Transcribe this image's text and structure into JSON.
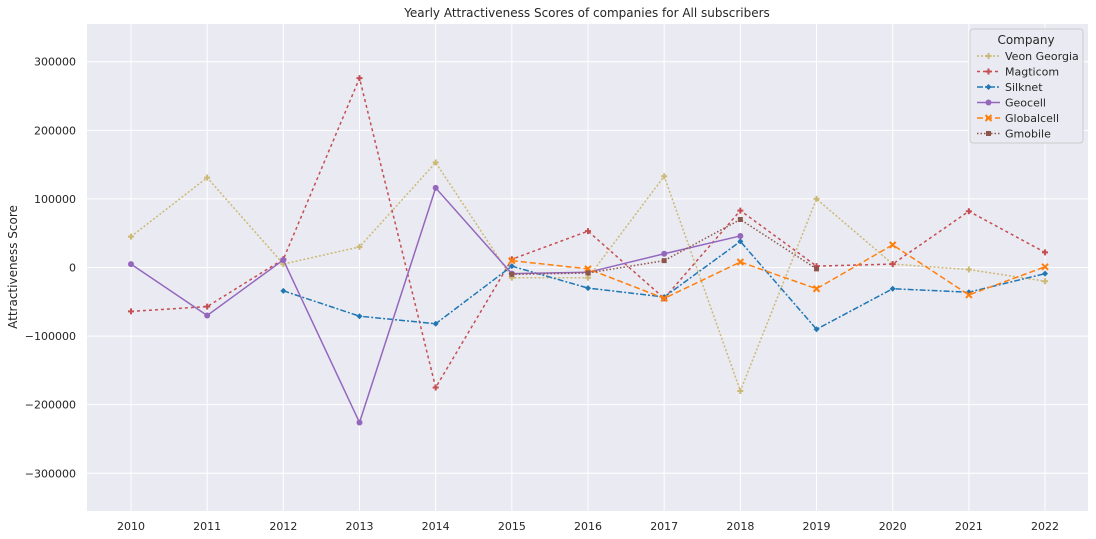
{
  "chart_data": {
    "type": "line",
    "title": "Yearly Attractiveness Scores of companies for All subscribers",
    "xlabel": "",
    "ylabel": "Attractiveness Score",
    "x": [
      "2010",
      "2011",
      "2012",
      "2013",
      "2014",
      "2015",
      "2016",
      "2017",
      "2018",
      "2019",
      "2020",
      "2021",
      "2022"
    ],
    "ylim": [
      -355000,
      355000
    ],
    "yticks": [
      -300000,
      -200000,
      -100000,
      0,
      100000,
      200000,
      300000
    ],
    "ytick_labels": [
      "−300000",
      "−200000",
      "−100000",
      "0",
      "100000",
      "200000",
      "300000"
    ],
    "grid": true,
    "legend": {
      "title": "Company",
      "position": "top-right"
    },
    "series": [
      {
        "name": "Veon Georgia",
        "color": "#ccb974",
        "dash": "2,2",
        "marker": "plus",
        "values": [
          45000,
          131000,
          5000,
          30000,
          153000,
          -15000,
          -15000,
          133000,
          -180000,
          100000,
          5000,
          -3000,
          -20000
        ]
      },
      {
        "name": "Magticom",
        "color": "#c44e52",
        "dash": "3,3",
        "marker": "plus",
        "values": [
          -64000,
          -57000,
          12000,
          276000,
          -175000,
          12000,
          53000,
          -45000,
          83000,
          2000,
          5000,
          82000,
          22000
        ]
      },
      {
        "name": "Silknet",
        "color": "#1f77b4",
        "dash": "6,2,2,2",
        "marker": "diamond",
        "values": [
          null,
          null,
          -34000,
          -71000,
          -82000,
          2000,
          -30000,
          -43000,
          38000,
          -90000,
          -31000,
          -36000,
          -9000
        ]
      },
      {
        "name": "Geocell",
        "color": "#9467bd",
        "dash": "",
        "marker": "circle",
        "values": [
          5000,
          -70000,
          11000,
          -226000,
          116000,
          -9000,
          -7000,
          20000,
          46000,
          null,
          null,
          null,
          null
        ]
      },
      {
        "name": "Globalcell",
        "color": "#ff7f0e",
        "dash": "6,3",
        "marker": "x",
        "values": [
          null,
          null,
          null,
          null,
          null,
          10000,
          -2000,
          -45000,
          8000,
          -31000,
          33000,
          -40000,
          1000
        ]
      },
      {
        "name": "Gmobile",
        "color": "#8c564b",
        "dash": "1.5,2",
        "marker": "square",
        "values": [
          null,
          null,
          null,
          null,
          null,
          -10000,
          -8000,
          10000,
          70000,
          -2000,
          null,
          null,
          null
        ]
      }
    ]
  }
}
